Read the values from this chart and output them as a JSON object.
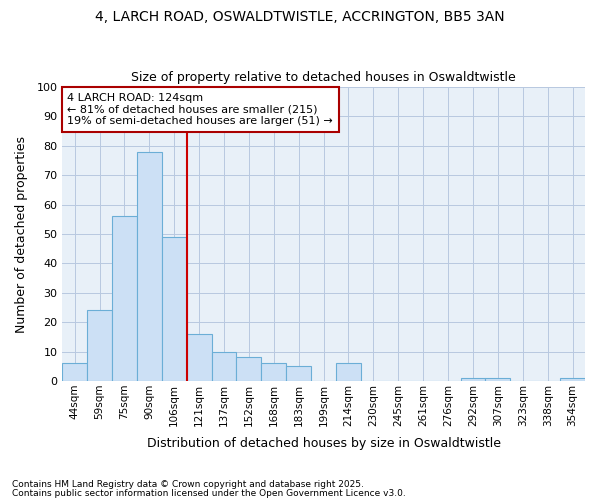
{
  "title1": "4, LARCH ROAD, OSWALDTWISTLE, ACCRINGTON, BB5 3AN",
  "title2": "Size of property relative to detached houses in Oswaldtwistle",
  "xlabel": "Distribution of detached houses by size in Oswaldtwistle",
  "ylabel": "Number of detached properties",
  "categories": [
    "44sqm",
    "59sqm",
    "75sqm",
    "90sqm",
    "106sqm",
    "121sqm",
    "137sqm",
    "152sqm",
    "168sqm",
    "183sqm",
    "199sqm",
    "214sqm",
    "230sqm",
    "245sqm",
    "261sqm",
    "276sqm",
    "292sqm",
    "307sqm",
    "323sqm",
    "338sqm",
    "354sqm"
  ],
  "values": [
    6,
    24,
    56,
    78,
    49,
    16,
    10,
    8,
    6,
    5,
    0,
    6,
    0,
    0,
    0,
    0,
    1,
    1,
    0,
    0,
    1
  ],
  "bar_color": "#cce0f5",
  "bar_edge_color": "#6baed6",
  "red_line_after_bar": 4,
  "annotation_title": "4 LARCH ROAD: 124sqm",
  "annotation_line1": "← 81% of detached houses are smaller (215)",
  "annotation_line2": "19% of semi-detached houses are larger (51) →",
  "annotation_box_color": "#ffffff",
  "annotation_box_edge_color": "#aa0000",
  "ylim": [
    0,
    100
  ],
  "yticks": [
    0,
    10,
    20,
    30,
    40,
    50,
    60,
    70,
    80,
    90,
    100
  ],
  "grid_color": "#b8c8e0",
  "plot_bg_color": "#e8f0f8",
  "fig_bg_color": "#ffffff",
  "footnote1": "Contains HM Land Registry data © Crown copyright and database right 2025.",
  "footnote2": "Contains public sector information licensed under the Open Government Licence v3.0."
}
